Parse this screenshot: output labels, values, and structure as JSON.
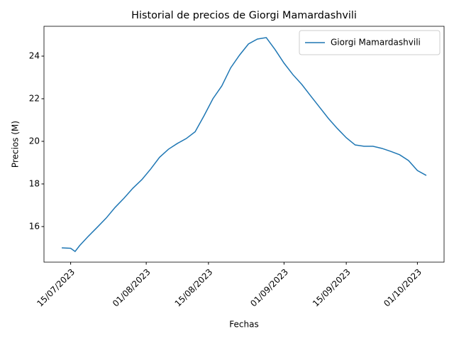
{
  "chart_data": {
    "type": "line",
    "title": "Historial de precios de Giorgi Mamardashvili",
    "x_label": "Fechas",
    "y_label": "Precios (M)",
    "x": [
      "13/07/2023",
      "15/07/2023",
      "16/07/2023",
      "17/07/2023",
      "19/07/2023",
      "21/07/2023",
      "23/07/2023",
      "25/07/2023",
      "27/07/2023",
      "29/07/2023",
      "31/07/2023",
      "02/08/2023",
      "04/08/2023",
      "06/08/2023",
      "08/08/2023",
      "10/08/2023",
      "12/08/2023",
      "14/08/2023",
      "16/08/2023",
      "18/08/2023",
      "20/08/2023",
      "22/08/2023",
      "24/08/2023",
      "26/08/2023",
      "28/08/2023",
      "30/08/2023",
      "01/09/2023",
      "03/09/2023",
      "05/09/2023",
      "07/09/2023",
      "09/09/2023",
      "11/09/2023",
      "13/09/2023",
      "15/09/2023",
      "17/09/2023",
      "19/09/2023",
      "21/09/2023",
      "23/09/2023",
      "25/09/2023",
      "27/09/2023",
      "29/09/2023",
      "01/10/2023",
      "03/10/2023"
    ],
    "series": [
      {
        "name": "Giorgi Mamardashvili",
        "color": "#1f77b4",
        "values": [
          15.0,
          14.98,
          14.83,
          15.1,
          15.55,
          15.97,
          16.4,
          16.9,
          17.33,
          17.8,
          18.2,
          18.7,
          19.25,
          19.63,
          19.9,
          20.13,
          20.45,
          21.2,
          22.0,
          22.6,
          23.45,
          24.05,
          24.57,
          24.8,
          24.87,
          24.3,
          23.67,
          23.13,
          22.67,
          22.13,
          21.6,
          21.07,
          20.6,
          20.17,
          19.83,
          19.77,
          19.77,
          19.67,
          19.53,
          19.37,
          19.1,
          18.63,
          18.4
        ]
      }
    ],
    "xlim": [
      "09/07/2023",
      "07/10/2023"
    ],
    "xticks": [
      "15/07/2023",
      "01/08/2023",
      "15/08/2023",
      "01/09/2023",
      "15/09/2023",
      "01/10/2023"
    ],
    "ylim": [
      14.33,
      25.4
    ],
    "yticks": [
      16,
      18,
      20,
      22,
      24
    ],
    "legend": "upper right"
  }
}
